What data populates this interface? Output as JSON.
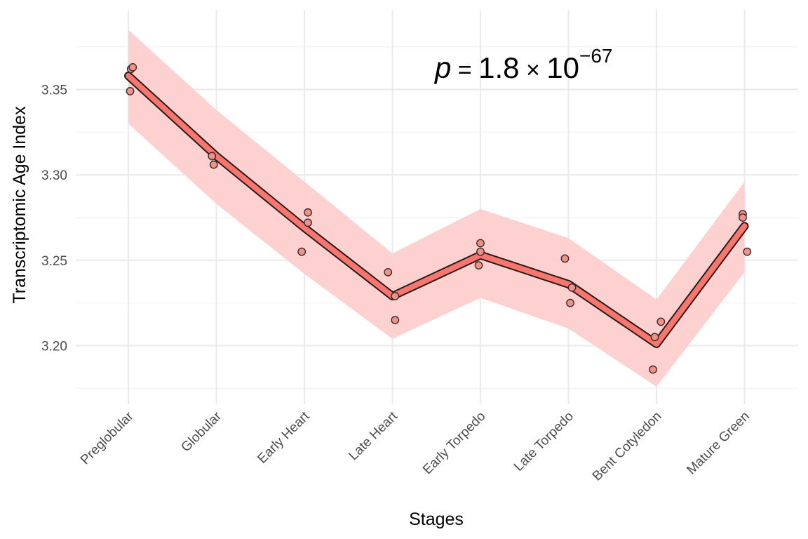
{
  "chart_data": {
    "type": "line",
    "xlabel": "Stages",
    "ylabel": "Transcriptomic Age Index",
    "categories": [
      "Preglobular",
      "Globular",
      "Early Heart",
      "Late Heart",
      "Early Torpedo",
      "Late Torpedo",
      "Bent Cotyledon",
      "Mature Green"
    ],
    "ylim": [
      3.165,
      3.395
    ],
    "yticks": [
      "3.20",
      "3.25",
      "3.30",
      "3.35"
    ],
    "ytick_values": [
      3.2,
      3.25,
      3.3,
      3.35
    ],
    "grid": true,
    "legend": "none",
    "annotation": {
      "italic": "p",
      "equals": " = ",
      "mantissa": "1.8",
      "times": " × ",
      "base": "10",
      "exponent": "−67"
    },
    "series": [
      {
        "kind": "mean_line",
        "values": [
          3.358,
          3.311,
          3.269,
          3.229,
          3.253,
          3.236,
          3.201,
          3.27
        ]
      },
      {
        "kind": "ribbon",
        "lower": [
          3.33,
          3.283,
          3.242,
          3.204,
          3.228,
          3.21,
          3.176,
          3.243
        ],
        "upper": [
          3.385,
          3.338,
          3.296,
          3.254,
          3.28,
          3.263,
          3.227,
          3.296
        ]
      },
      {
        "kind": "points",
        "points": [
          {
            "category": 0,
            "offset": 0.02,
            "y": 3.349
          },
          {
            "category": 0,
            "offset": 0.03,
            "y": 3.362
          },
          {
            "category": 0,
            "offset": 0.05,
            "y": 3.363
          },
          {
            "category": 1,
            "offset": -0.05,
            "y": 3.311
          },
          {
            "category": 1,
            "offset": -0.03,
            "y": 3.306
          },
          {
            "category": 2,
            "offset": -0.03,
            "y": 3.255
          },
          {
            "category": 2,
            "offset": 0.04,
            "y": 3.272
          },
          {
            "category": 2,
            "offset": 0.04,
            "y": 3.278
          },
          {
            "category": 3,
            "offset": -0.05,
            "y": 3.243
          },
          {
            "category": 3,
            "offset": 0.03,
            "y": 3.229
          },
          {
            "category": 3,
            "offset": 0.03,
            "y": 3.215
          },
          {
            "category": 4,
            "offset": -0.02,
            "y": 3.247
          },
          {
            "category": 4,
            "offset": 0.0,
            "y": 3.255
          },
          {
            "category": 4,
            "offset": 0.0,
            "y": 3.26
          },
          {
            "category": 5,
            "offset": -0.04,
            "y": 3.251
          },
          {
            "category": 5,
            "offset": 0.04,
            "y": 3.234
          },
          {
            "category": 5,
            "offset": 0.02,
            "y": 3.225
          },
          {
            "category": 6,
            "offset": -0.04,
            "y": 3.186
          },
          {
            "category": 6,
            "offset": -0.02,
            "y": 3.205
          },
          {
            "category": 6,
            "offset": 0.05,
            "y": 3.214
          },
          {
            "category": 7,
            "offset": -0.02,
            "y": 3.277
          },
          {
            "category": 7,
            "offset": -0.02,
            "y": 3.275
          },
          {
            "category": 7,
            "offset": 0.03,
            "y": 3.255
          }
        ]
      }
    ]
  },
  "colors": {
    "ribbon": "#fdd1d0",
    "line_fill": "#f8766d",
    "line_outline": "#2a1a1a",
    "point_fill": "#f0918a",
    "point_stroke": "#3a2a2a",
    "grid_major": "#ebebeb",
    "grid_minor": "#f4f4f4"
  }
}
